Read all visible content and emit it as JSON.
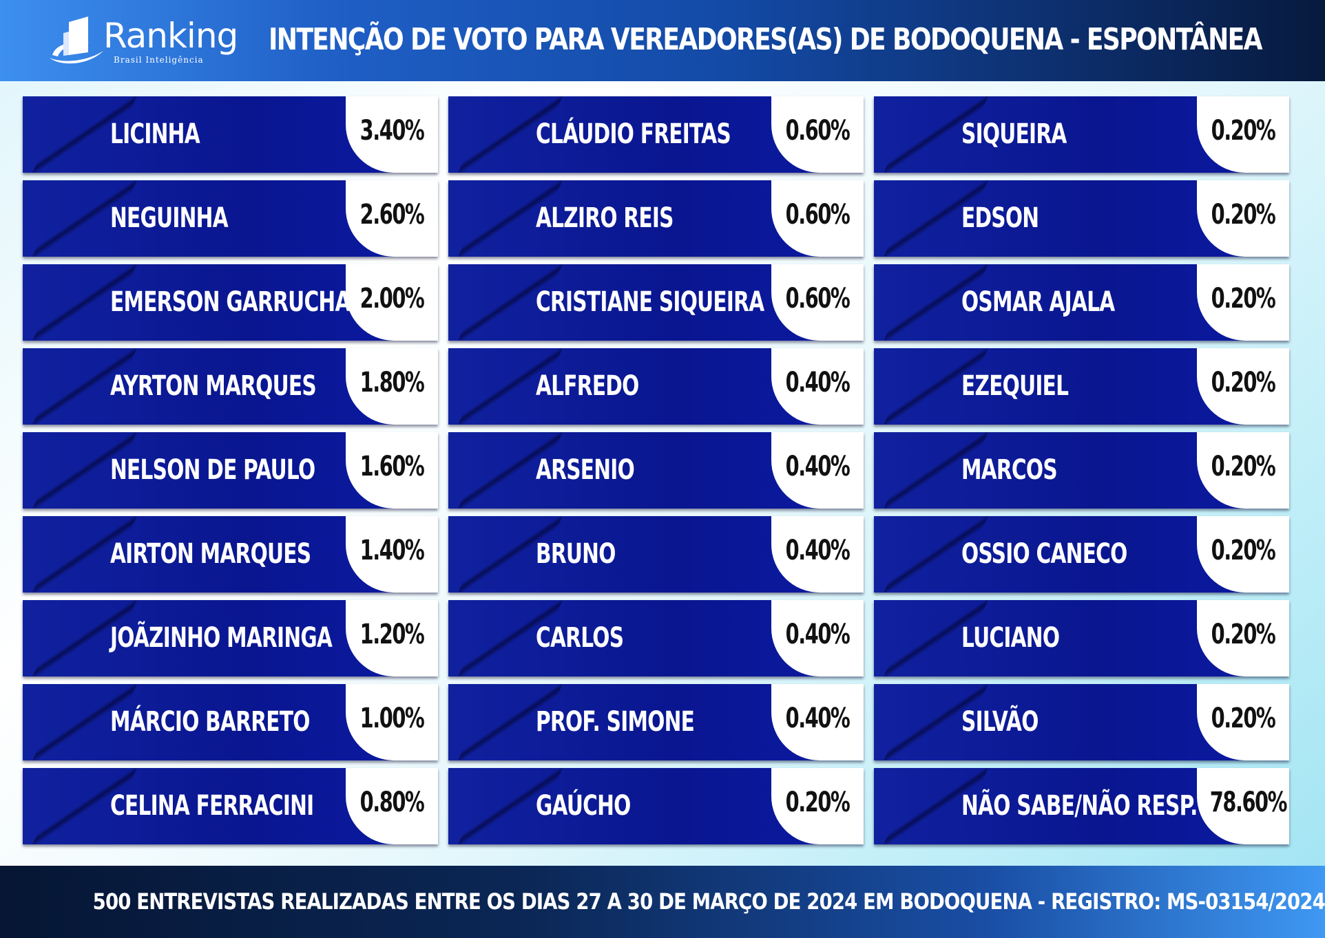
{
  "header": {
    "logo_text": "Ranking",
    "logo_subtitle": "Brasil Inteligência",
    "title": "INTENÇÃO DE VOTO PARA VEREADORES(AS)  DE BODOQUENA - ESPONTÂNEA"
  },
  "candidates": [
    {
      "name": "LICINHA",
      "pct": "3.40%"
    },
    {
      "name": "CLÁUDIO FREITAS",
      "pct": "0.60%"
    },
    {
      "name": "SIQUEIRA",
      "pct": "0.20%"
    },
    {
      "name": "NEGUINHA",
      "pct": "2.60%"
    },
    {
      "name": "ALZIRO REIS",
      "pct": "0.60%"
    },
    {
      "name": "EDSON",
      "pct": "0.20%"
    },
    {
      "name": "EMERSON GARRUCHA",
      "pct": "2.00%"
    },
    {
      "name": "CRISTIANE SIQUEIRA",
      "pct": "0.60%"
    },
    {
      "name": "OSMAR AJALA",
      "pct": "0.20%"
    },
    {
      "name": "AYRTON MARQUES",
      "pct": "1.80%"
    },
    {
      "name": "ALFREDO",
      "pct": "0.40%"
    },
    {
      "name": "EZEQUIEL",
      "pct": "0.20%"
    },
    {
      "name": "NELSON DE PAULO",
      "pct": "1.60%"
    },
    {
      "name": "ARSENIO",
      "pct": "0.40%"
    },
    {
      "name": "MARCOS",
      "pct": "0.20%"
    },
    {
      "name": "AIRTON MARQUES",
      "pct": "1.40%"
    },
    {
      "name": "BRUNO",
      "pct": "0.40%"
    },
    {
      "name": "OSSIO CANECO",
      "pct": "0.20%"
    },
    {
      "name": "JOÃZINHO MARINGA",
      "pct": "1.20%"
    },
    {
      "name": "CARLOS",
      "pct": "0.40%"
    },
    {
      "name": "LUCIANO",
      "pct": "0.20%"
    },
    {
      "name": "MÁRCIO BARRETO",
      "pct": "1.00%"
    },
    {
      "name": "PROF. SIMONE",
      "pct": "0.40%"
    },
    {
      "name": "SILVÃO",
      "pct": "0.20%"
    },
    {
      "name": "CELINA FERRACINI",
      "pct": "0.80%"
    },
    {
      "name": "GAÚCHO",
      "pct": "0.20%"
    },
    {
      "name": "NÃO SABE/NÃO RESP.",
      "pct": "78.60%"
    }
  ],
  "footer": {
    "text": "500 ENTREVISTAS REALIZADAS ENTRE OS DIAS 27 A 30 DE MARÇO DE 2024 EM BODOQUENA - REGISTRO: MS-03154/2024"
  }
}
